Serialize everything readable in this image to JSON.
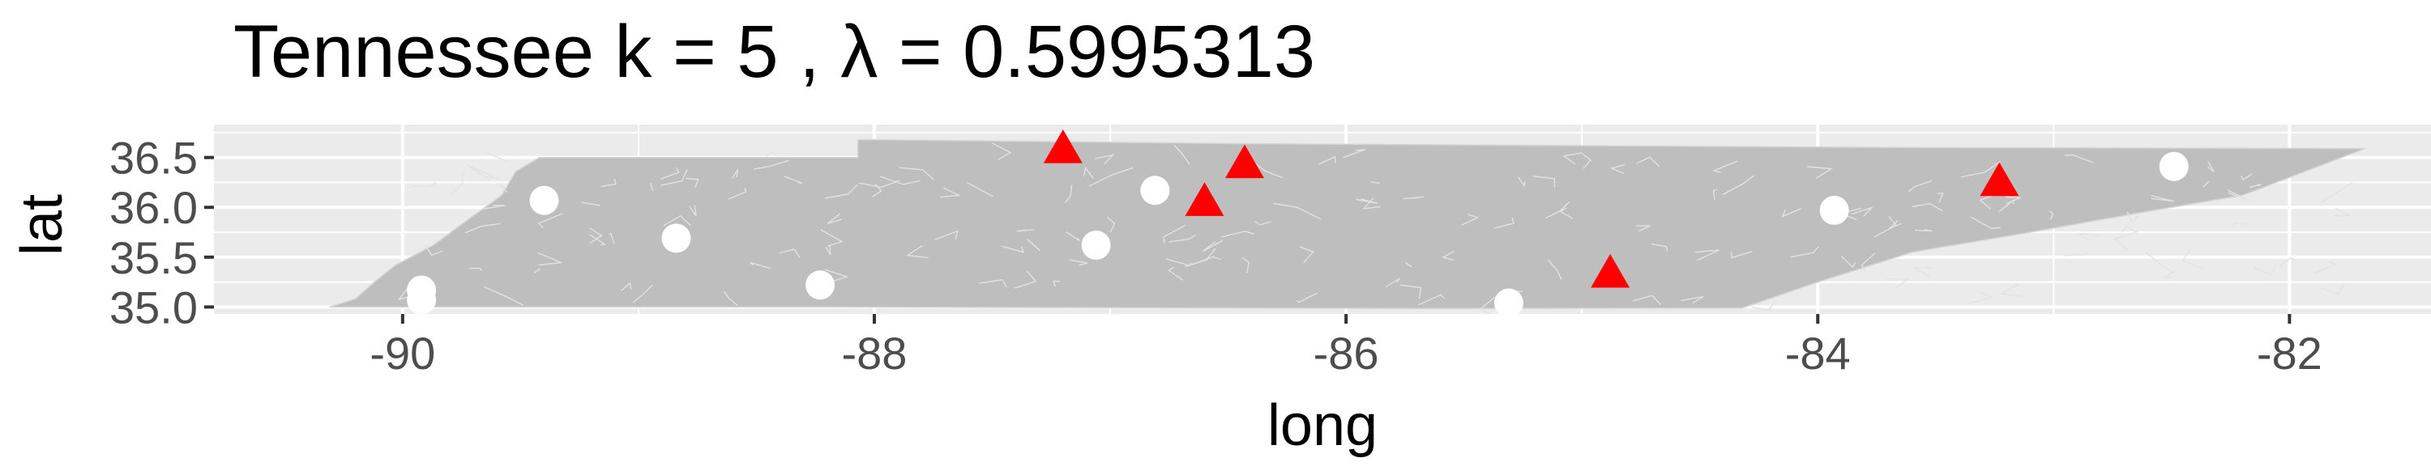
{
  "chart_data": {
    "type": "scatter",
    "title": "Tennessee  k =  5 ,  λ  =  0.5995313",
    "xlabel": "long",
    "ylabel": "lat",
    "xlim": [
      -90.8,
      -81.4
    ],
    "ylim": [
      34.93,
      36.83
    ],
    "x_ticks": [
      -90,
      -88,
      -86,
      -84,
      -82
    ],
    "x_tick_labels": [
      "-90",
      "-88",
      "-86",
      "-84",
      "-82"
    ],
    "y_ticks": [
      35.0,
      35.5,
      36.0,
      36.5
    ],
    "y_tick_labels": [
      "35.0",
      "35.5",
      "36.0",
      "36.5"
    ],
    "grid": true,
    "background": "map",
    "map_region": "Tennessee",
    "series": [
      {
        "marker": "circle",
        "color": "#ffffff",
        "points": [
          {
            "x": -89.92,
            "y": 35.17
          },
          {
            "x": -89.92,
            "y": 35.07
          },
          {
            "x": -89.4,
            "y": 36.07
          },
          {
            "x": -88.84,
            "y": 35.69
          },
          {
            "x": -88.23,
            "y": 35.22
          },
          {
            "x": -87.06,
            "y": 35.62
          },
          {
            "x": -86.81,
            "y": 36.17
          },
          {
            "x": -85.31,
            "y": 35.04
          },
          {
            "x": -83.93,
            "y": 35.97
          },
          {
            "x": -82.49,
            "y": 36.41
          }
        ]
      },
      {
        "marker": "triangle",
        "color": "#ff0000",
        "points": [
          {
            "x": -87.2,
            "y": 36.58
          },
          {
            "x": -86.43,
            "y": 36.43
          },
          {
            "x": -86.6,
            "y": 36.05
          },
          {
            "x": -84.88,
            "y": 35.33
          },
          {
            "x": -83.23,
            "y": 36.25
          }
        ]
      }
    ]
  }
}
